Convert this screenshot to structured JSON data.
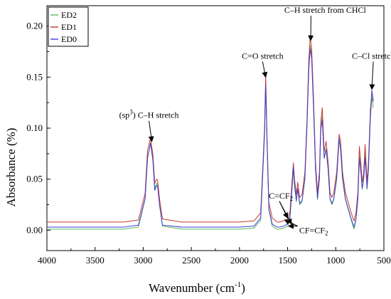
{
  "chart_data": {
    "type": "line",
    "xlabel": "Wavenumber (cm",
    "xlabel_sup": "-1",
    "xlabel_end": ")",
    "ylabel": "Absorbance (%)",
    "xlim": [
      4000,
      500
    ],
    "ylim": [
      -0.02,
      0.22
    ],
    "x_ticks": [
      4000,
      3500,
      3000,
      2500,
      2000,
      1500,
      1000,
      500
    ],
    "y_ticks": [
      0.0,
      0.05,
      0.1,
      0.15,
      0.2
    ],
    "y_tick_labels": [
      "0.00",
      "0.05",
      "0.10",
      "0.15",
      "0.20"
    ],
    "x_reversed": true,
    "grid": false,
    "legend_position": "top-left",
    "colors": {
      "ED2": "#5cb85c",
      "ED1": "#c0392b",
      "ED0": "#3f3fd8"
    },
    "series": [
      {
        "name": "ED2",
        "color": "#5cb85c",
        "points": [
          [
            4000,
            0.001
          ],
          [
            3500,
            0.001
          ],
          [
            3200,
            0.001
          ],
          [
            3050,
            0.003
          ],
          [
            2980,
            0.03
          ],
          [
            2955,
            0.07
          ],
          [
            2925,
            0.086
          ],
          [
            2900,
            0.07
          ],
          [
            2880,
            0.04
          ],
          [
            2860,
            0.046
          ],
          [
            2850,
            0.045
          ],
          [
            2830,
            0.025
          ],
          [
            2800,
            0.004
          ],
          [
            2600,
            0.001
          ],
          [
            2300,
            0.001
          ],
          [
            2000,
            0.001
          ],
          [
            1850,
            0.002
          ],
          [
            1780,
            0.01
          ],
          [
            1740,
            0.095
          ],
          [
            1728,
            0.145
          ],
          [
            1715,
            0.09
          ],
          [
            1695,
            0.02
          ],
          [
            1660,
            0.004
          ],
          [
            1610,
            0.001
          ],
          [
            1580,
            0.001
          ],
          [
            1545,
            0.002
          ],
          [
            1500,
            0.004
          ],
          [
            1475,
            0.012
          ],
          [
            1455,
            0.04
          ],
          [
            1440,
            0.06
          ],
          [
            1430,
            0.045
          ],
          [
            1410,
            0.028
          ],
          [
            1395,
            0.04
          ],
          [
            1375,
            0.025
          ],
          [
            1350,
            0.028
          ],
          [
            1320,
            0.05
          ],
          [
            1300,
            0.1
          ],
          [
            1280,
            0.16
          ],
          [
            1265,
            0.181
          ],
          [
            1250,
            0.17
          ],
          [
            1230,
            0.12
          ],
          [
            1210,
            0.06
          ],
          [
            1190,
            0.03
          ],
          [
            1170,
            0.05
          ],
          [
            1155,
            0.1
          ],
          [
            1140,
            0.112
          ],
          [
            1120,
            0.07
          ],
          [
            1100,
            0.08
          ],
          [
            1080,
            0.06
          ],
          [
            1060,
            0.03
          ],
          [
            1040,
            0.025
          ],
          [
            1020,
            0.03
          ],
          [
            990,
            0.05
          ],
          [
            965,
            0.088
          ],
          [
            950,
            0.08
          ],
          [
            930,
            0.05
          ],
          [
            900,
            0.03
          ],
          [
            870,
            0.02
          ],
          [
            840,
            0.01
          ],
          [
            810,
            0.001
          ],
          [
            790,
            0.01
          ],
          [
            770,
            0.03
          ],
          [
            755,
            0.074
          ],
          [
            740,
            0.06
          ],
          [
            725,
            0.04
          ],
          [
            710,
            0.05
          ],
          [
            695,
            0.076
          ],
          [
            675,
            0.04
          ],
          [
            660,
            0.06
          ],
          [
            640,
            0.11
          ],
          [
            625,
            0.13
          ],
          [
            610,
            0.12
          ]
        ]
      },
      {
        "name": "ED1",
        "color": "#c0392b",
        "points": [
          [
            4000,
            0.008
          ],
          [
            3500,
            0.008
          ],
          [
            3200,
            0.008
          ],
          [
            3050,
            0.01
          ],
          [
            2980,
            0.036
          ],
          [
            2955,
            0.078
          ],
          [
            2925,
            0.09
          ],
          [
            2900,
            0.075
          ],
          [
            2880,
            0.046
          ],
          [
            2860,
            0.05
          ],
          [
            2850,
            0.049
          ],
          [
            2830,
            0.03
          ],
          [
            2800,
            0.011
          ],
          [
            2600,
            0.008
          ],
          [
            2300,
            0.008
          ],
          [
            2000,
            0.008
          ],
          [
            1850,
            0.009
          ],
          [
            1780,
            0.017
          ],
          [
            1740,
            0.1
          ],
          [
            1728,
            0.152
          ],
          [
            1715,
            0.095
          ],
          [
            1695,
            0.027
          ],
          [
            1660,
            0.012
          ],
          [
            1610,
            0.008
          ],
          [
            1580,
            0.008
          ],
          [
            1545,
            0.009
          ],
          [
            1500,
            0.011
          ],
          [
            1475,
            0.019
          ],
          [
            1455,
            0.047
          ],
          [
            1440,
            0.066
          ],
          [
            1430,
            0.051
          ],
          [
            1410,
            0.035
          ],
          [
            1395,
            0.047
          ],
          [
            1375,
            0.032
          ],
          [
            1350,
            0.035
          ],
          [
            1320,
            0.057
          ],
          [
            1300,
            0.107
          ],
          [
            1280,
            0.168
          ],
          [
            1265,
            0.189
          ],
          [
            1250,
            0.178
          ],
          [
            1230,
            0.128
          ],
          [
            1210,
            0.067
          ],
          [
            1190,
            0.037
          ],
          [
            1170,
            0.057
          ],
          [
            1155,
            0.107
          ],
          [
            1140,
            0.12
          ],
          [
            1120,
            0.077
          ],
          [
            1100,
            0.087
          ],
          [
            1080,
            0.067
          ],
          [
            1060,
            0.037
          ],
          [
            1040,
            0.032
          ],
          [
            1020,
            0.037
          ],
          [
            990,
            0.057
          ],
          [
            965,
            0.094
          ],
          [
            950,
            0.087
          ],
          [
            930,
            0.057
          ],
          [
            900,
            0.037
          ],
          [
            870,
            0.027
          ],
          [
            840,
            0.017
          ],
          [
            810,
            0.009
          ],
          [
            790,
            0.017
          ],
          [
            770,
            0.037
          ],
          [
            755,
            0.082
          ],
          [
            740,
            0.067
          ],
          [
            725,
            0.047
          ],
          [
            710,
            0.057
          ],
          [
            695,
            0.084
          ],
          [
            675,
            0.047
          ],
          [
            660,
            0.067
          ],
          [
            640,
            0.118
          ],
          [
            625,
            0.136
          ],
          [
            610,
            0.126
          ]
        ]
      },
      {
        "name": "ED0",
        "color": "#3f3fd8",
        "points": [
          [
            4000,
            0.003
          ],
          [
            3500,
            0.003
          ],
          [
            3200,
            0.003
          ],
          [
            3050,
            0.005
          ],
          [
            2980,
            0.031
          ],
          [
            2955,
            0.071
          ],
          [
            2925,
            0.085
          ],
          [
            2900,
            0.069
          ],
          [
            2880,
            0.039
          ],
          [
            2860,
            0.044
          ],
          [
            2850,
            0.043
          ],
          [
            2830,
            0.024
          ],
          [
            2800,
            0.005
          ],
          [
            2600,
            0.003
          ],
          [
            2300,
            0.003
          ],
          [
            2000,
            0.003
          ],
          [
            1850,
            0.004
          ],
          [
            1780,
            0.012
          ],
          [
            1740,
            0.094
          ],
          [
            1728,
            0.142
          ],
          [
            1715,
            0.089
          ],
          [
            1695,
            0.021
          ],
          [
            1660,
            0.006
          ],
          [
            1610,
            0.003
          ],
          [
            1580,
            0.003
          ],
          [
            1545,
            0.004
          ],
          [
            1500,
            0.006
          ],
          [
            1475,
            0.014
          ],
          [
            1455,
            0.041
          ],
          [
            1440,
            0.062
          ],
          [
            1430,
            0.046
          ],
          [
            1410,
            0.029
          ],
          [
            1395,
            0.041
          ],
          [
            1375,
            0.026
          ],
          [
            1350,
            0.029
          ],
          [
            1320,
            0.051
          ],
          [
            1300,
            0.101
          ],
          [
            1280,
            0.158
          ],
          [
            1265,
            0.178
          ],
          [
            1250,
            0.168
          ],
          [
            1230,
            0.119
          ],
          [
            1210,
            0.061
          ],
          [
            1190,
            0.031
          ],
          [
            1170,
            0.051
          ],
          [
            1155,
            0.099
          ],
          [
            1140,
            0.108
          ],
          [
            1120,
            0.071
          ],
          [
            1100,
            0.079
          ],
          [
            1080,
            0.061
          ],
          [
            1060,
            0.031
          ],
          [
            1040,
            0.026
          ],
          [
            1020,
            0.031
          ],
          [
            990,
            0.051
          ],
          [
            965,
            0.09
          ],
          [
            950,
            0.079
          ],
          [
            930,
            0.051
          ],
          [
            900,
            0.031
          ],
          [
            870,
            0.021
          ],
          [
            840,
            0.011
          ],
          [
            810,
            0.003
          ],
          [
            790,
            0.011
          ],
          [
            770,
            0.031
          ],
          [
            755,
            0.07
          ],
          [
            740,
            0.058
          ],
          [
            725,
            0.041
          ],
          [
            710,
            0.051
          ],
          [
            695,
            0.071
          ],
          [
            675,
            0.041
          ],
          [
            660,
            0.061
          ],
          [
            640,
            0.112
          ],
          [
            625,
            0.137
          ],
          [
            610,
            0.127
          ]
        ]
      }
    ],
    "annotations": [
      {
        "id": "sp3",
        "text_pre": "(sp",
        "sup": "3",
        "text_post": ") C–H stretch",
        "x": 2940,
        "y": 0.11,
        "arrow_to": [
          2910,
          0.087
        ]
      },
      {
        "id": "co",
        "text": "C=O stretch",
        "x": 1760,
        "y": 0.168,
        "arrow_to": [
          1728,
          0.15
        ]
      },
      {
        "id": "chcl",
        "text": "C–H stretch from CHCl",
        "x": 1110,
        "y": 0.213,
        "arrow_to": [
          1260,
          0.186
        ]
      },
      {
        "id": "ccl",
        "text": "C–Cl stretch",
        "x": 610,
        "y": 0.168,
        "arrow_to": [
          625,
          0.138
        ]
      },
      {
        "id": "ccf2",
        "text": "C=CF",
        "sub": "2",
        "x": 1570,
        "y": 0.031,
        "arrow_to": [
          1500,
          0.012
        ]
      },
      {
        "id": "cfcf2",
        "text": "CF=CF",
        "sub": "2",
        "x": 1380,
        "y": -0.003,
        "arrow_to": [
          1530,
          0.01
        ]
      }
    ]
  }
}
